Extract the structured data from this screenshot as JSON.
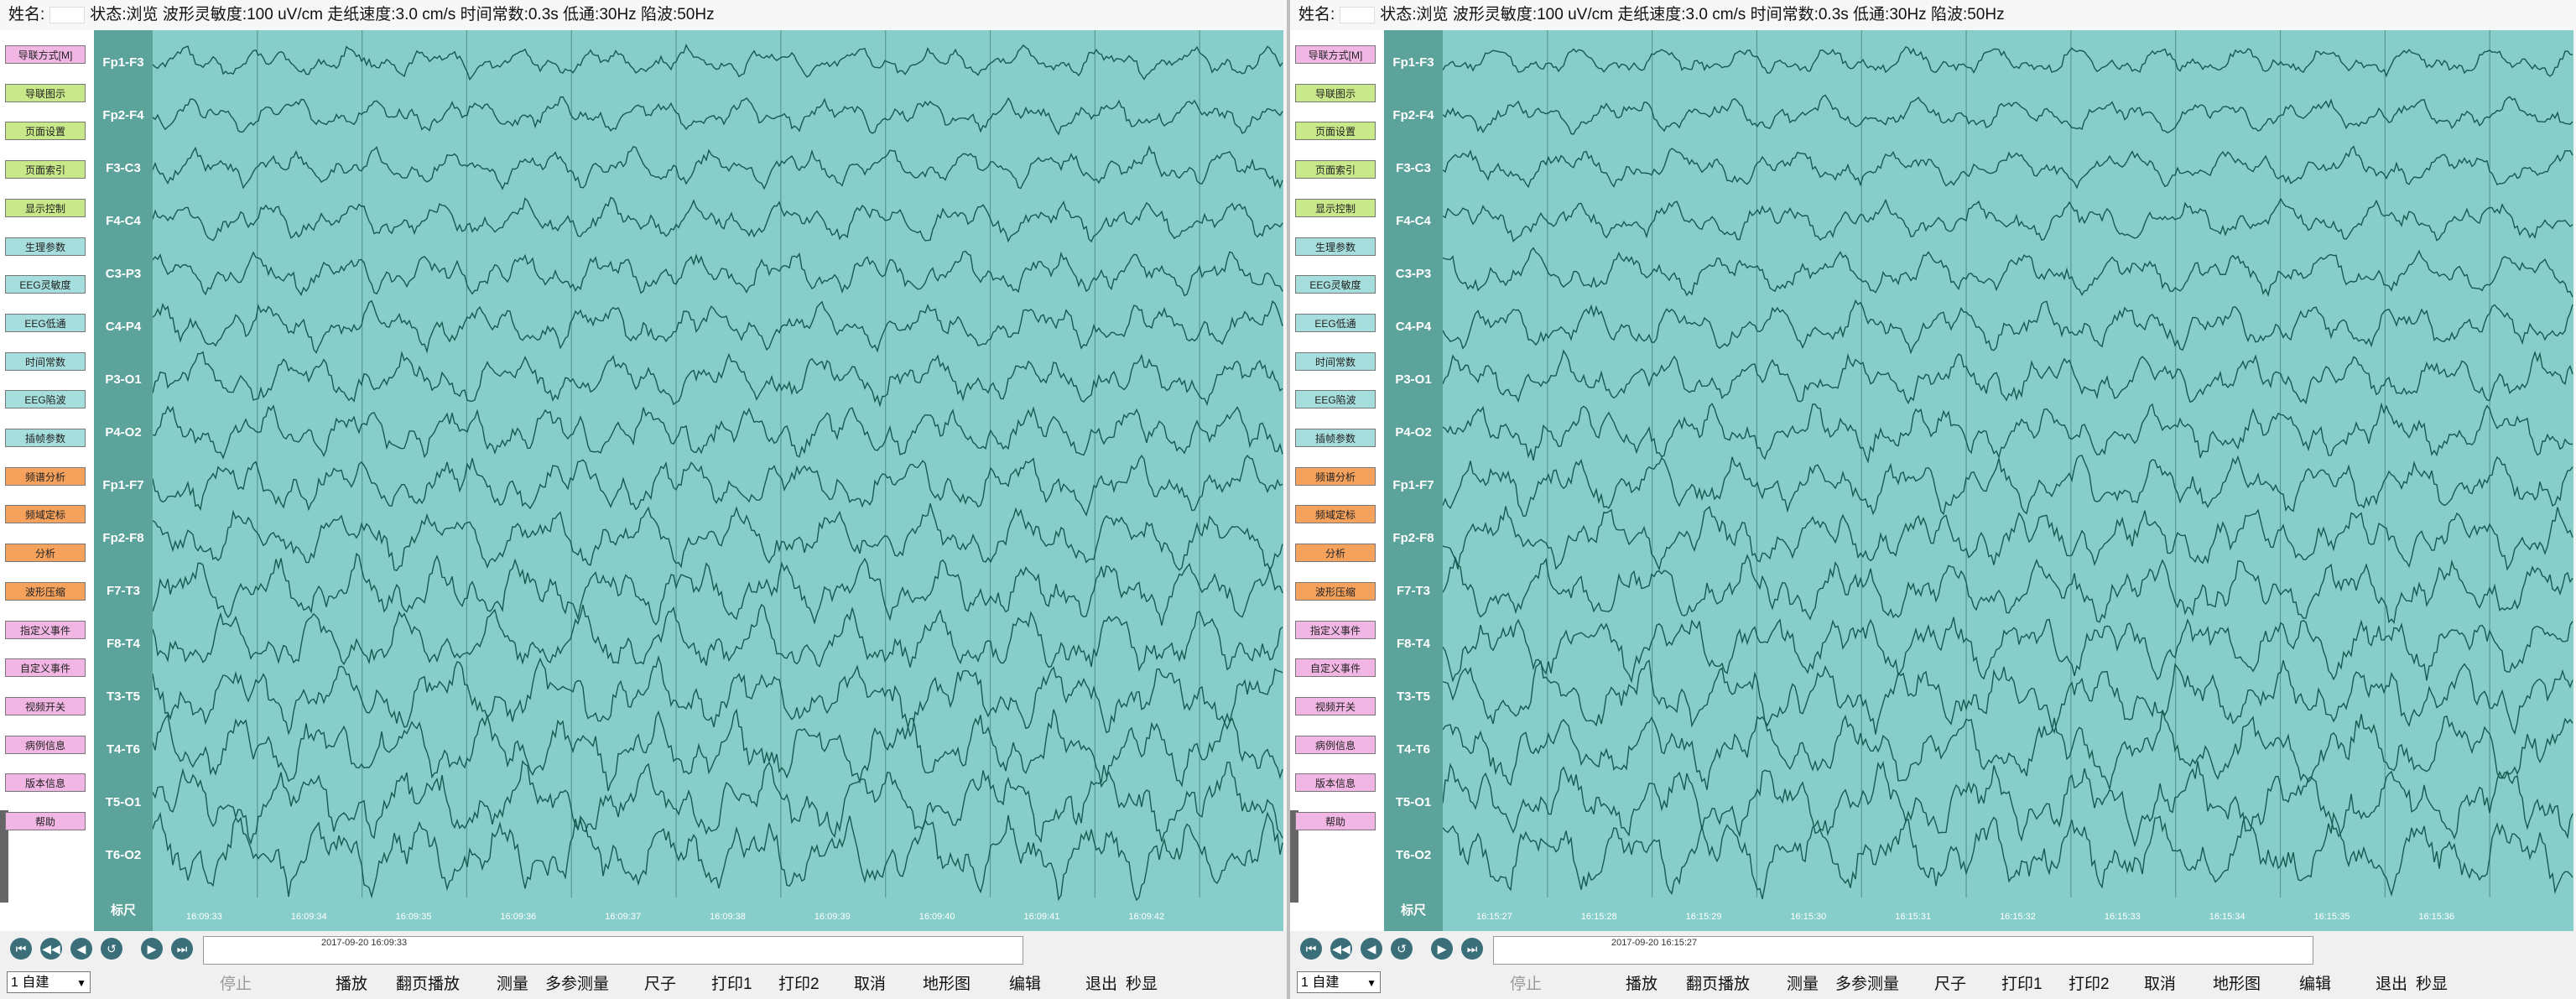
{
  "colors": {
    "plot_bg": "#87cecb",
    "label_bg": "#5ca39b",
    "trace": "#175a52",
    "grid": "#2f6f69",
    "btn_green": "#c8e88a",
    "btn_cyan": "#a6dedd",
    "btn_orange": "#f6a25d",
    "btn_pink": "#f2b6e4"
  },
  "topbar": {
    "name_label": "姓名:",
    "params": "状态:浏览 波形灵敏度:100 uV/cm 走纸速度:3.0 cm/s 时间常数:0.3s 低通:30Hz 陷波:50Hz"
  },
  "sidebar_buttons": [
    {
      "label": "导联方式[M]",
      "color": "pink"
    },
    {
      "label": "导联图示",
      "color": "green"
    },
    {
      "label": "页面设置",
      "color": "green"
    },
    {
      "label": "页面索引",
      "color": "green"
    },
    {
      "label": "显示控制",
      "color": "green"
    },
    {
      "label": "生理参数",
      "color": "cyan"
    },
    {
      "label": "EEG灵敏度",
      "color": "cyan"
    },
    {
      "label": "EEG低通",
      "color": "cyan"
    },
    {
      "label": "时间常数",
      "color": "cyan"
    },
    {
      "label": "EEG陷波",
      "color": "cyan"
    },
    {
      "label": "插帧参数",
      "color": "cyan"
    },
    {
      "label": "频谱分析",
      "color": "orange"
    },
    {
      "label": "频域定标",
      "color": "orange"
    },
    {
      "label": "分析",
      "color": "orange"
    },
    {
      "label": "波形压缩",
      "color": "orange"
    },
    {
      "label": "指定义事件",
      "color": "pink"
    },
    {
      "label": "自定义事件",
      "color": "pink"
    },
    {
      "label": "视频开关",
      "color": "pink"
    },
    {
      "label": "病例信息",
      "color": "pink"
    },
    {
      "label": "版本信息",
      "color": "pink"
    },
    {
      "label": "帮助",
      "color": "pink"
    }
  ],
  "channels": [
    "Fp1-F3",
    "Fp2-F4",
    "F3-C3",
    "F4-C4",
    "C3-P3",
    "C4-P4",
    "P3-O1",
    "P4-O2",
    "Fp1-F7",
    "Fp2-F8",
    "F7-T3",
    "F8-T4",
    "T3-T5",
    "T4-T6",
    "T5-O1",
    "T6-O2"
  ],
  "scale_label": "标尺",
  "panels": [
    {
      "datetime": "2017-09-20 16:09:33",
      "timestamps": [
        "16:09:33",
        "16:09:34",
        "16:09:35",
        "16:09:36",
        "16:09:37",
        "16:09:38",
        "16:09:39",
        "16:09:40",
        "16:09:41",
        "16:09:42"
      ]
    },
    {
      "datetime": "2017-09-20 16:15:27",
      "timestamps": [
        "16:15:27",
        "16:15:28",
        "16:15:29",
        "16:15:30",
        "16:15:31",
        "16:15:32",
        "16:15:33",
        "16:15:34",
        "16:15:35",
        "16:15:36"
      ]
    }
  ],
  "nav_icons": [
    "first-icon",
    "prev-fast-icon",
    "prev-icon",
    "rewind-icon",
    "next-icon",
    "last-icon"
  ],
  "montage_select": "1 自建",
  "commands": [
    "停止",
    "播放",
    "翻页播放",
    "测量",
    "多参测量",
    "尺子",
    "打印1",
    "打印2",
    "取消",
    "地形图",
    "编辑",
    "退出",
    "秒显"
  ]
}
